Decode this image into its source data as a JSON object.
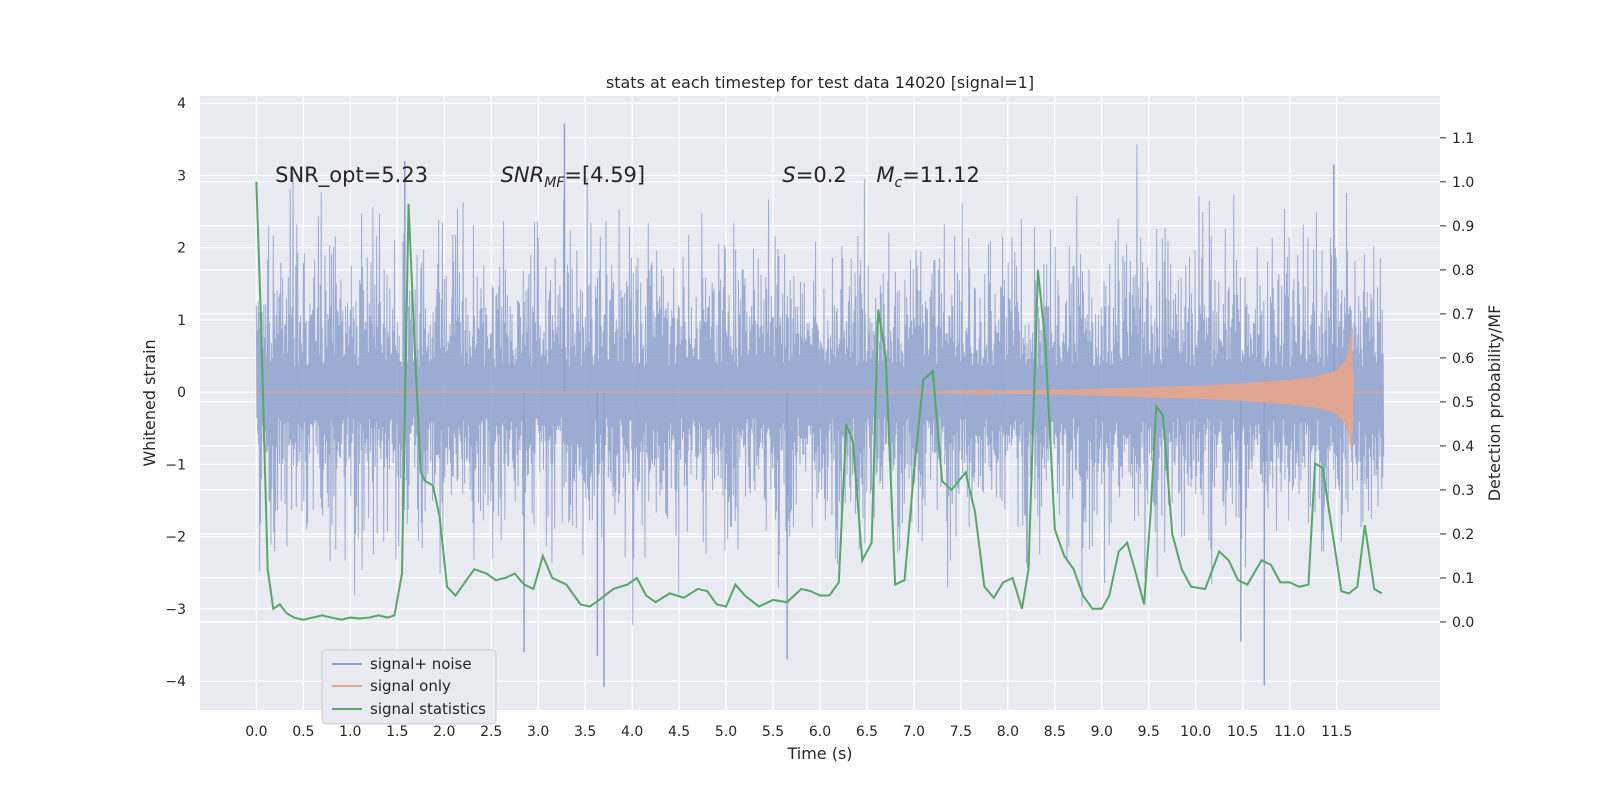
{
  "chart_data": {
    "type": "line",
    "title": "stats at each timestep for test data 14020 [signal=1]",
    "xlabel": "Time (s)",
    "ylabel_left": "Whitened strain",
    "ylabel_right": "Detection probability/MF",
    "xlim": [
      -0.6,
      12.6
    ],
    "ylim_left": [
      -4.4,
      4.1
    ],
    "ylim_right": [
      -0.2,
      1.195
    ],
    "x_ticks": [
      0.0,
      0.5,
      1.0,
      1.5,
      2.0,
      2.5,
      3.0,
      3.5,
      4.0,
      4.5,
      5.0,
      5.5,
      6.0,
      6.5,
      7.0,
      7.5,
      8.0,
      8.5,
      9.0,
      9.5,
      10.0,
      10.5,
      11.0,
      11.5
    ],
    "x_tick_labels": [
      "0.0",
      "0.5",
      "1.0",
      "1.5",
      "2.0",
      "2.5",
      "3.0",
      "3.5",
      "4.0",
      "4.5",
      "5.0",
      "5.5",
      "6.0",
      "6.5",
      "7.0",
      "7.5",
      "8.0",
      "8.5",
      "9.0",
      "9.5",
      "10.0",
      "10.5",
      "11.0",
      "11.5"
    ],
    "y_left_ticks": [
      4,
      3,
      2,
      1,
      0,
      -1,
      -2,
      -3,
      -4
    ],
    "y_left_tick_labels": [
      "4",
      "3",
      "2",
      "1",
      "0",
      "−1",
      "−2",
      "−3",
      "−4"
    ],
    "y_right_ticks": [
      1.1,
      1.0,
      0.9,
      0.8,
      0.7,
      0.6,
      0.5,
      0.4,
      0.3,
      0.2,
      0.1,
      0.0
    ],
    "y_right_tick_labels": [
      "1.1",
      "1.0",
      "0.9",
      "0.8",
      "0.7",
      "0.6",
      "0.5",
      "0.4",
      "0.3",
      "0.2",
      "0.1",
      "0.0"
    ],
    "grid": true,
    "legend_position": "lower-left",
    "series": [
      {
        "name": "signal+ noise",
        "axis": "left",
        "color": "#8da0cb",
        "duration": 12.0,
        "typical_range": [
          -1.9,
          2.0
        ],
        "max": 3.72,
        "min": -4.08
      },
      {
        "name": "signal only",
        "axis": "left",
        "color": "#e8a58b",
        "envelope": {
          "x": [
            0.0,
            7.0,
            7.5,
            8.0,
            8.5,
            9.0,
            9.5,
            10.0,
            10.5,
            11.0,
            11.3,
            11.5,
            11.6,
            11.66,
            11.68
          ],
          "amp": [
            0.0,
            0.0,
            0.01,
            0.02,
            0.03,
            0.05,
            0.07,
            0.09,
            0.12,
            0.17,
            0.22,
            0.3,
            0.45,
            0.85,
            0.0
          ]
        },
        "baseline_end": 12.0
      },
      {
        "name": "signal statistics",
        "axis": "right",
        "color": "#55a868",
        "x": [
          0.0,
          0.05,
          0.12,
          0.18,
          0.25,
          0.32,
          0.4,
          0.5,
          0.6,
          0.7,
          0.8,
          0.9,
          1.0,
          1.1,
          1.2,
          1.3,
          1.4,
          1.47,
          1.55,
          1.62,
          1.68,
          1.75,
          1.8,
          1.88,
          1.95,
          2.03,
          2.12,
          2.22,
          2.32,
          2.45,
          2.55,
          2.65,
          2.75,
          2.85,
          2.95,
          3.05,
          3.15,
          3.3,
          3.45,
          3.55,
          3.65,
          3.8,
          3.95,
          4.05,
          4.15,
          4.25,
          4.4,
          4.55,
          4.7,
          4.8,
          4.9,
          5.0,
          5.1,
          5.2,
          5.35,
          5.5,
          5.65,
          5.8,
          5.9,
          6.0,
          6.1,
          6.2,
          6.28,
          6.35,
          6.45,
          6.55,
          6.62,
          6.7,
          6.8,
          6.9,
          7.0,
          7.1,
          7.2,
          7.3,
          7.4,
          7.55,
          7.65,
          7.75,
          7.85,
          7.95,
          8.05,
          8.15,
          8.22,
          8.32,
          8.4,
          8.5,
          8.6,
          8.7,
          8.8,
          8.9,
          9.0,
          9.08,
          9.18,
          9.27,
          9.35,
          9.45,
          9.52,
          9.58,
          9.65,
          9.75,
          9.85,
          9.95,
          10.1,
          10.25,
          10.35,
          10.45,
          10.55,
          10.7,
          10.8,
          10.9,
          11.0,
          11.1,
          11.2,
          11.27,
          11.35,
          11.45,
          11.55,
          11.63,
          11.72,
          11.8,
          11.9,
          11.98
        ],
        "values": [
          1.0,
          0.68,
          0.12,
          0.03,
          0.04,
          0.02,
          0.01,
          0.005,
          0.01,
          0.015,
          0.01,
          0.005,
          0.01,
          0.008,
          0.01,
          0.015,
          0.01,
          0.015,
          0.11,
          0.95,
          0.65,
          0.34,
          0.32,
          0.31,
          0.24,
          0.08,
          0.06,
          0.09,
          0.12,
          0.11,
          0.095,
          0.1,
          0.11,
          0.085,
          0.075,
          0.15,
          0.1,
          0.085,
          0.04,
          0.035,
          0.05,
          0.075,
          0.085,
          0.1,
          0.06,
          0.045,
          0.065,
          0.055,
          0.075,
          0.07,
          0.04,
          0.035,
          0.085,
          0.06,
          0.035,
          0.05,
          0.045,
          0.075,
          0.07,
          0.06,
          0.06,
          0.09,
          0.45,
          0.41,
          0.14,
          0.18,
          0.71,
          0.6,
          0.085,
          0.095,
          0.34,
          0.55,
          0.57,
          0.32,
          0.3,
          0.34,
          0.25,
          0.08,
          0.055,
          0.09,
          0.1,
          0.03,
          0.12,
          0.8,
          0.63,
          0.21,
          0.15,
          0.12,
          0.06,
          0.03,
          0.03,
          0.06,
          0.16,
          0.18,
          0.12,
          0.04,
          0.25,
          0.49,
          0.47,
          0.2,
          0.12,
          0.08,
          0.075,
          0.16,
          0.14,
          0.095,
          0.085,
          0.14,
          0.13,
          0.09,
          0.09,
          0.08,
          0.085,
          0.36,
          0.35,
          0.21,
          0.07,
          0.065,
          0.08,
          0.22,
          0.075,
          0.065
        ]
      }
    ],
    "annotations": [
      {
        "text": "SNR_opt=5.23",
        "x": 0.2,
        "y": 2.88
      },
      {
        "text": "SNR",
        "sub": "MF",
        "suffix": "=[4.59]",
        "x": 2.6,
        "y": 2.88,
        "italic_base": true
      },
      {
        "text": "S",
        "suffix": "=0.2",
        "x": 5.6,
        "y": 2.88,
        "italic_base": true
      },
      {
        "text": "M",
        "sub": "c",
        "suffix": "=11.12",
        "x": 6.6,
        "y": 2.88,
        "italic_base": true
      }
    ]
  }
}
